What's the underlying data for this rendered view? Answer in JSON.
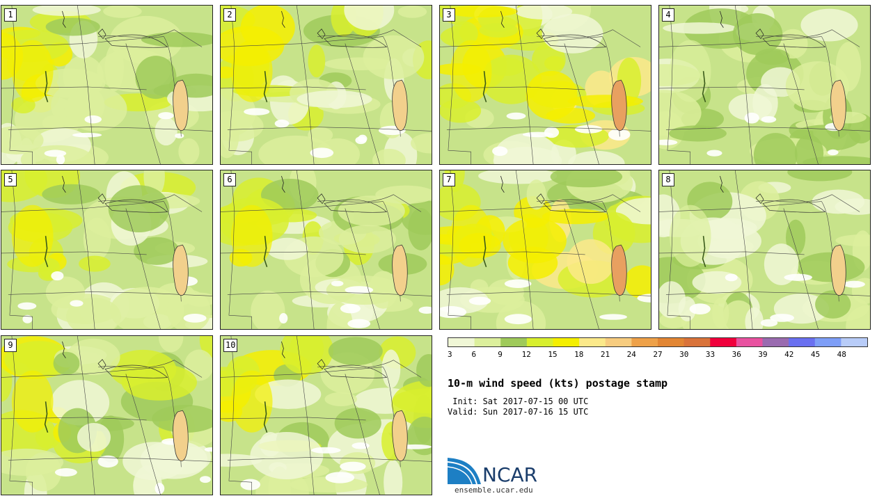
{
  "panels": [
    {
      "label": "1",
      "style": 0
    },
    {
      "label": "2",
      "style": 1
    },
    {
      "label": "3",
      "style": 2
    },
    {
      "label": "4",
      "style": 3
    },
    {
      "label": "5",
      "style": 0
    },
    {
      "label": "6",
      "style": 1
    },
    {
      "label": "7",
      "style": 2
    },
    {
      "label": "8",
      "style": 3
    },
    {
      "label": "9",
      "style": 0
    },
    {
      "label": "10",
      "style": 1
    }
  ],
  "legend": {
    "ticks": [
      "3",
      "6",
      "9",
      "12",
      "15",
      "18",
      "21",
      "24",
      "27",
      "30",
      "33",
      "36",
      "39",
      "42",
      "45",
      "48"
    ],
    "colors": [
      "#f0f7d6",
      "#dcef9c",
      "#9fca5a",
      "#d8ef2e",
      "#f4ef00",
      "#fbe98a",
      "#f7cc7f",
      "#eea149",
      "#e28634",
      "#d9733a",
      "#f0003c",
      "#e852a0",
      "#9a6bb0",
      "#6a70f0",
      "#7e9ef7",
      "#b8ccf8"
    ]
  },
  "title": "10-m wind speed (kts) postage stamp",
  "init": " Init: Sat 2017-07-15 00 UTC",
  "valid": "Valid: Sun 2017-07-16 15 UTC",
  "logo": {
    "text": "NCAR",
    "url": "ensemble.ucar.edu"
  }
}
